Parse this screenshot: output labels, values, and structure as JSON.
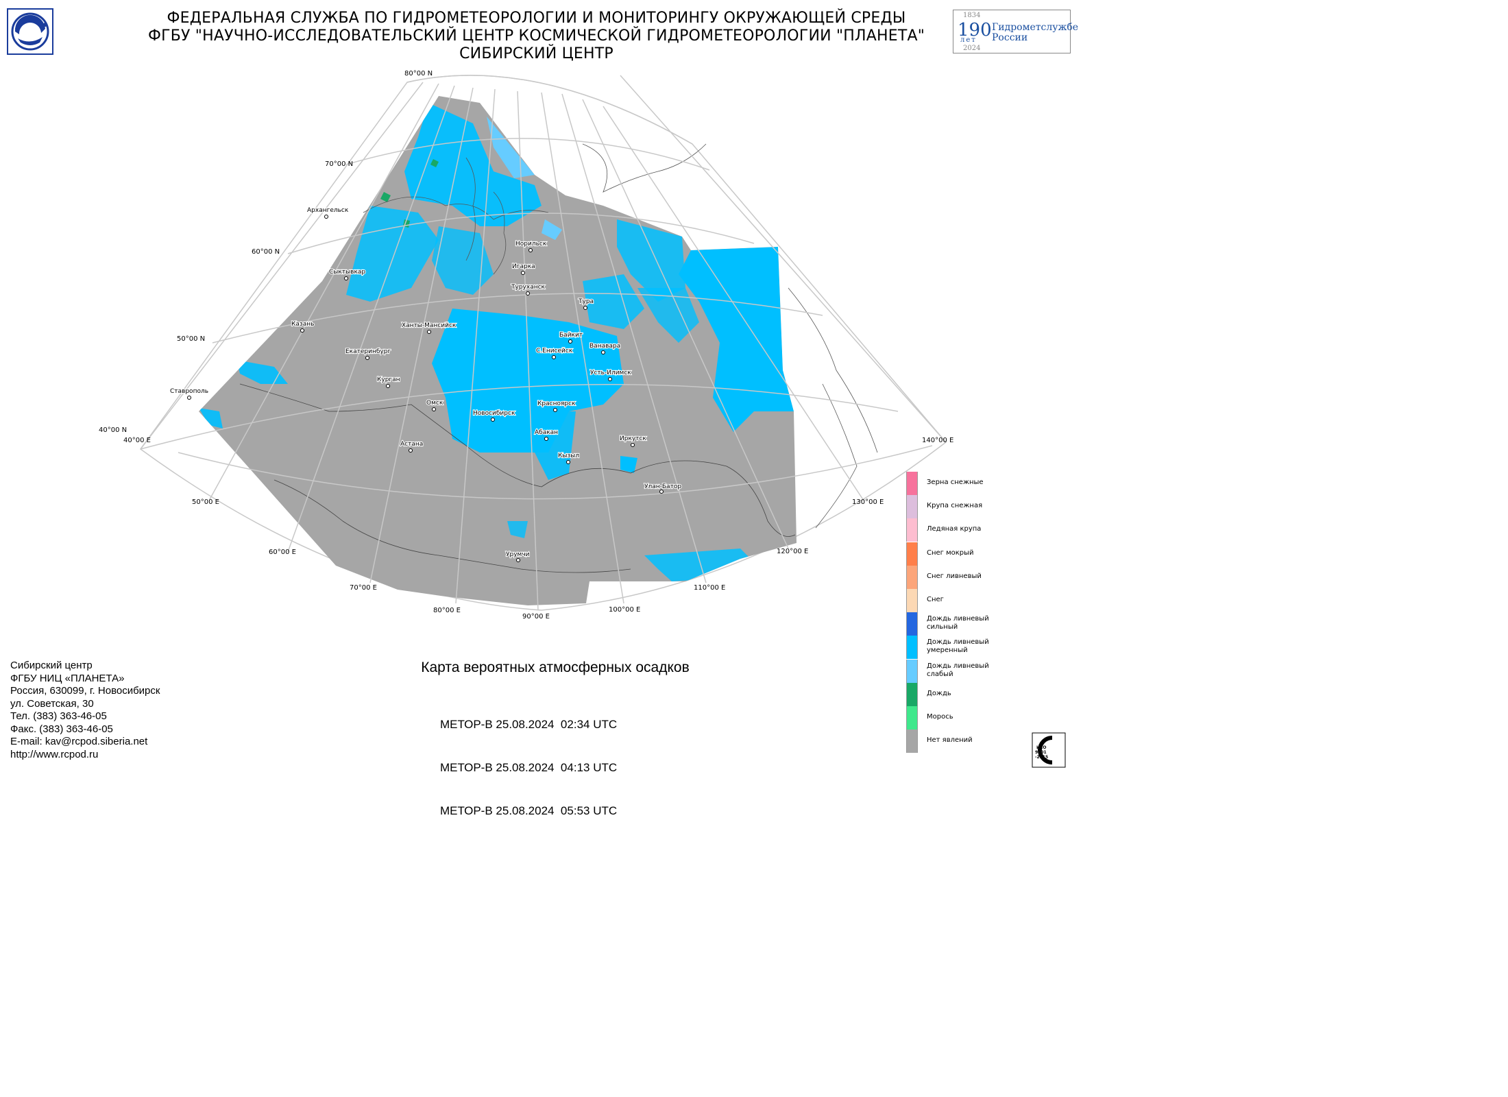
{
  "header": {
    "line1": "ФЕДЕРАЛЬНАЯ СЛУЖБА ПО ГИДРОМЕТЕОРОЛОГИИ И МОНИТОРИНГУ ОКРУЖАЮЩЕЙ СРЕДЫ",
    "line2": "ФГБУ \"НАУЧНО-ИССЛЕДОВАТЕЛЬСКИЙ ЦЕНТР КОСМИЧЕСКОЙ ГИДРОМЕТЕОРОЛОГИИ \"ПЛАНЕТА\"",
    "line3": "СИБИРСКИЙ ЦЕНТР"
  },
  "anniversary_logo": {
    "year_start": "1834",
    "number": "190",
    "unit": "лет",
    "name_line1": "Гидрометслужбе",
    "name_line2": "России",
    "year_end": "2024"
  },
  "map": {
    "lat_labels": [
      "80°00 N",
      "70°00 N",
      "60°00 N",
      "50°00 N",
      "40°00 N"
    ],
    "lon_labels": [
      "40°00 E",
      "50°00 E",
      "60°00 E",
      "70°00 E",
      "80°00 E",
      "90°00 E",
      "100°00 E",
      "110°00 E",
      "120°00 E",
      "130°00 E",
      "140°00 E"
    ],
    "cities": [
      "Архангельск",
      "Норильск",
      "Игарка",
      "Туруханск",
      "Сыктывкар",
      "Тура",
      "Казань",
      "Ханты-Мансийск",
      "Байкит",
      "50°00 N",
      "Ванавара",
      "С.Енисейск",
      "Екатеринбург",
      "Усть-Илимск",
      "Курган",
      "Ставрополь",
      "Омск",
      "Красноярск",
      "Новосибирск",
      "Абакан",
      "Астана",
      "Иркутск",
      "Кызыл",
      "Улан-Батор",
      "Урумчи"
    ],
    "colors": {
      "no_phenomena": "#a6a6a6",
      "rain_shower_moderate": "#00bfff",
      "rain_shower_light": "#66ccff",
      "rain": "#19a866"
    }
  },
  "legend": {
    "items": [
      {
        "label": "Зерна снежные",
        "color": "#f7729c"
      },
      {
        "label": "Крупа снежная",
        "color": "#ddbedd"
      },
      {
        "label": "Ледяная крупа",
        "color": "#fdbdd0"
      },
      {
        "label": "Снег мокрый",
        "color": "#ff7f4a"
      },
      {
        "label": "Снег ливневый",
        "color": "#fca57a"
      },
      {
        "label": "Снег",
        "color": "#fcd8b4"
      },
      {
        "label": "Дождь ливневый\nсильный",
        "color": "#2467e0"
      },
      {
        "label": "Дождь ливневый\nумеренный",
        "color": "#00bfff"
      },
      {
        "label": "Дождь ливневый\nслабый",
        "color": "#66ccff"
      },
      {
        "label": "Дождь",
        "color": "#19a866"
      },
      {
        "label": "Морось",
        "color": "#3fe88c"
      },
      {
        "label": "Нет явлений",
        "color": "#a6a6a6"
      }
    ]
  },
  "contact": {
    "lines": [
      "Сибирский центр",
      "ФГБУ НИЦ «ПЛАНЕТА»",
      "Россия, 630099, г. Новосибирск",
      "ул. Советская, 30",
      "Тел. (383) 363-46-05",
      "Факс. (383) 363-46-05",
      "E-mail: kav@rcpod.siberia.net",
      "http://www.rcpod.ru"
    ]
  },
  "product": {
    "title": "Карта вероятных атмосферных осадков",
    "passes": [
      "МЕТОР-В 25.08.2024  02:34 UTC",
      "МЕТОР-В 25.08.2024  04:13 UTC",
      "МЕТОР-В 25.08.2024  05:53 UTC"
    ]
  },
  "iso_badge": {
    "text": "ИСО 9001 -2015"
  }
}
